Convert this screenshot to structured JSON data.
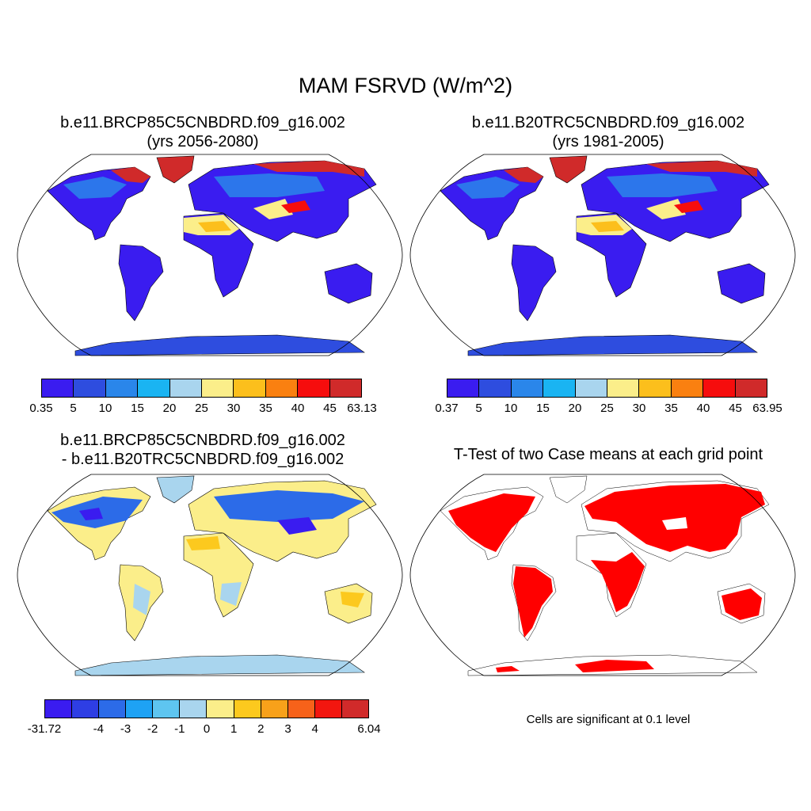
{
  "title": "MAM FSRVD (W/m^2)",
  "panels": [
    {
      "title_line1": "b.e11.BRCP85C5CNBDRD.f09_g16.002",
      "title_line2": "(yrs 2056-2080)",
      "colorbar": {
        "colors": [
          "#3a1cf0",
          "#2e4ddf",
          "#2a86ea",
          "#1ab4f2",
          "#a9d5ee",
          "#fbee8a",
          "#fcbf1c",
          "#fa8010",
          "#f60d0d",
          "#d02a2a"
        ],
        "labels": [
          "0.35",
          "5",
          "10",
          "15",
          "20",
          "25",
          "30",
          "35",
          "40",
          "45",
          "63.13"
        ]
      }
    },
    {
      "title_line1": "b.e11.B20TRC5CNBDRD.f09_g16.002",
      "title_line2": "(yrs 1981-2005)",
      "colorbar": {
        "colors": [
          "#3a1cf0",
          "#2e4ddf",
          "#2a86ea",
          "#1ab4f2",
          "#a9d5ee",
          "#fbee8a",
          "#fcbf1c",
          "#fa8010",
          "#f60d0d",
          "#d02a2a"
        ],
        "labels": [
          "0.37",
          "5",
          "10",
          "15",
          "20",
          "25",
          "30",
          "35",
          "40",
          "45",
          "63.95"
        ]
      }
    },
    {
      "title_line1": "b.e11.BRCP85C5CNBDRD.f09_g16.002",
      "title_line2": "- b.e11.B20TRC5CNBDRD.f09_g16.002",
      "colorbar": {
        "colors": [
          "#3a1cf0",
          "#2e3ee4",
          "#2c6be8",
          "#1ea2f4",
          "#5ec5f0",
          "#a9d5ee",
          "#fbee8a",
          "#fcc91e",
          "#f8a11a",
          "#f7621a",
          "#f2160f",
          "#d12a2a"
        ],
        "labels": [
          "-31.72",
          "-4",
          "-3",
          "-2",
          "-1",
          "0",
          "1",
          "2",
          "3",
          "4",
          "6.04"
        ],
        "label_slots": [
          0,
          2,
          3,
          4,
          5,
          6,
          7,
          8,
          9,
          10,
          12
        ]
      }
    },
    {
      "title_line1": "T-Test of two Case means at each grid point",
      "note": "Cells are significant at 0.1 level",
      "significant_color": "#ff0000"
    }
  ],
  "map_colors": {
    "panel1": {
      "land": "#3a1cf0",
      "high_lat": "#2a86ea",
      "arctic": "#d02a2a",
      "desert": "#fbee8a",
      "desert_hot": "#fcbf1c",
      "antarctica": "#2e4ddf",
      "plateau": "#f60d0d"
    },
    "panel2": {
      "land": "#3a1cf0",
      "high_lat": "#2a86ea",
      "arctic": "#d02a2a",
      "desert": "#fbee8a",
      "desert_hot": "#fcbf1c",
      "antarctica": "#2e4ddf",
      "plateau": "#f60d0d"
    },
    "panel3": {
      "land": "#fbee8a",
      "cool": "#a9d5ee",
      "north": "#2c6be8",
      "deep": "#3a1cf0",
      "warm": "#fcc91e",
      "antarctica": "#a9d5ee"
    },
    "panel4": {
      "sig": "#ff0000"
    }
  }
}
